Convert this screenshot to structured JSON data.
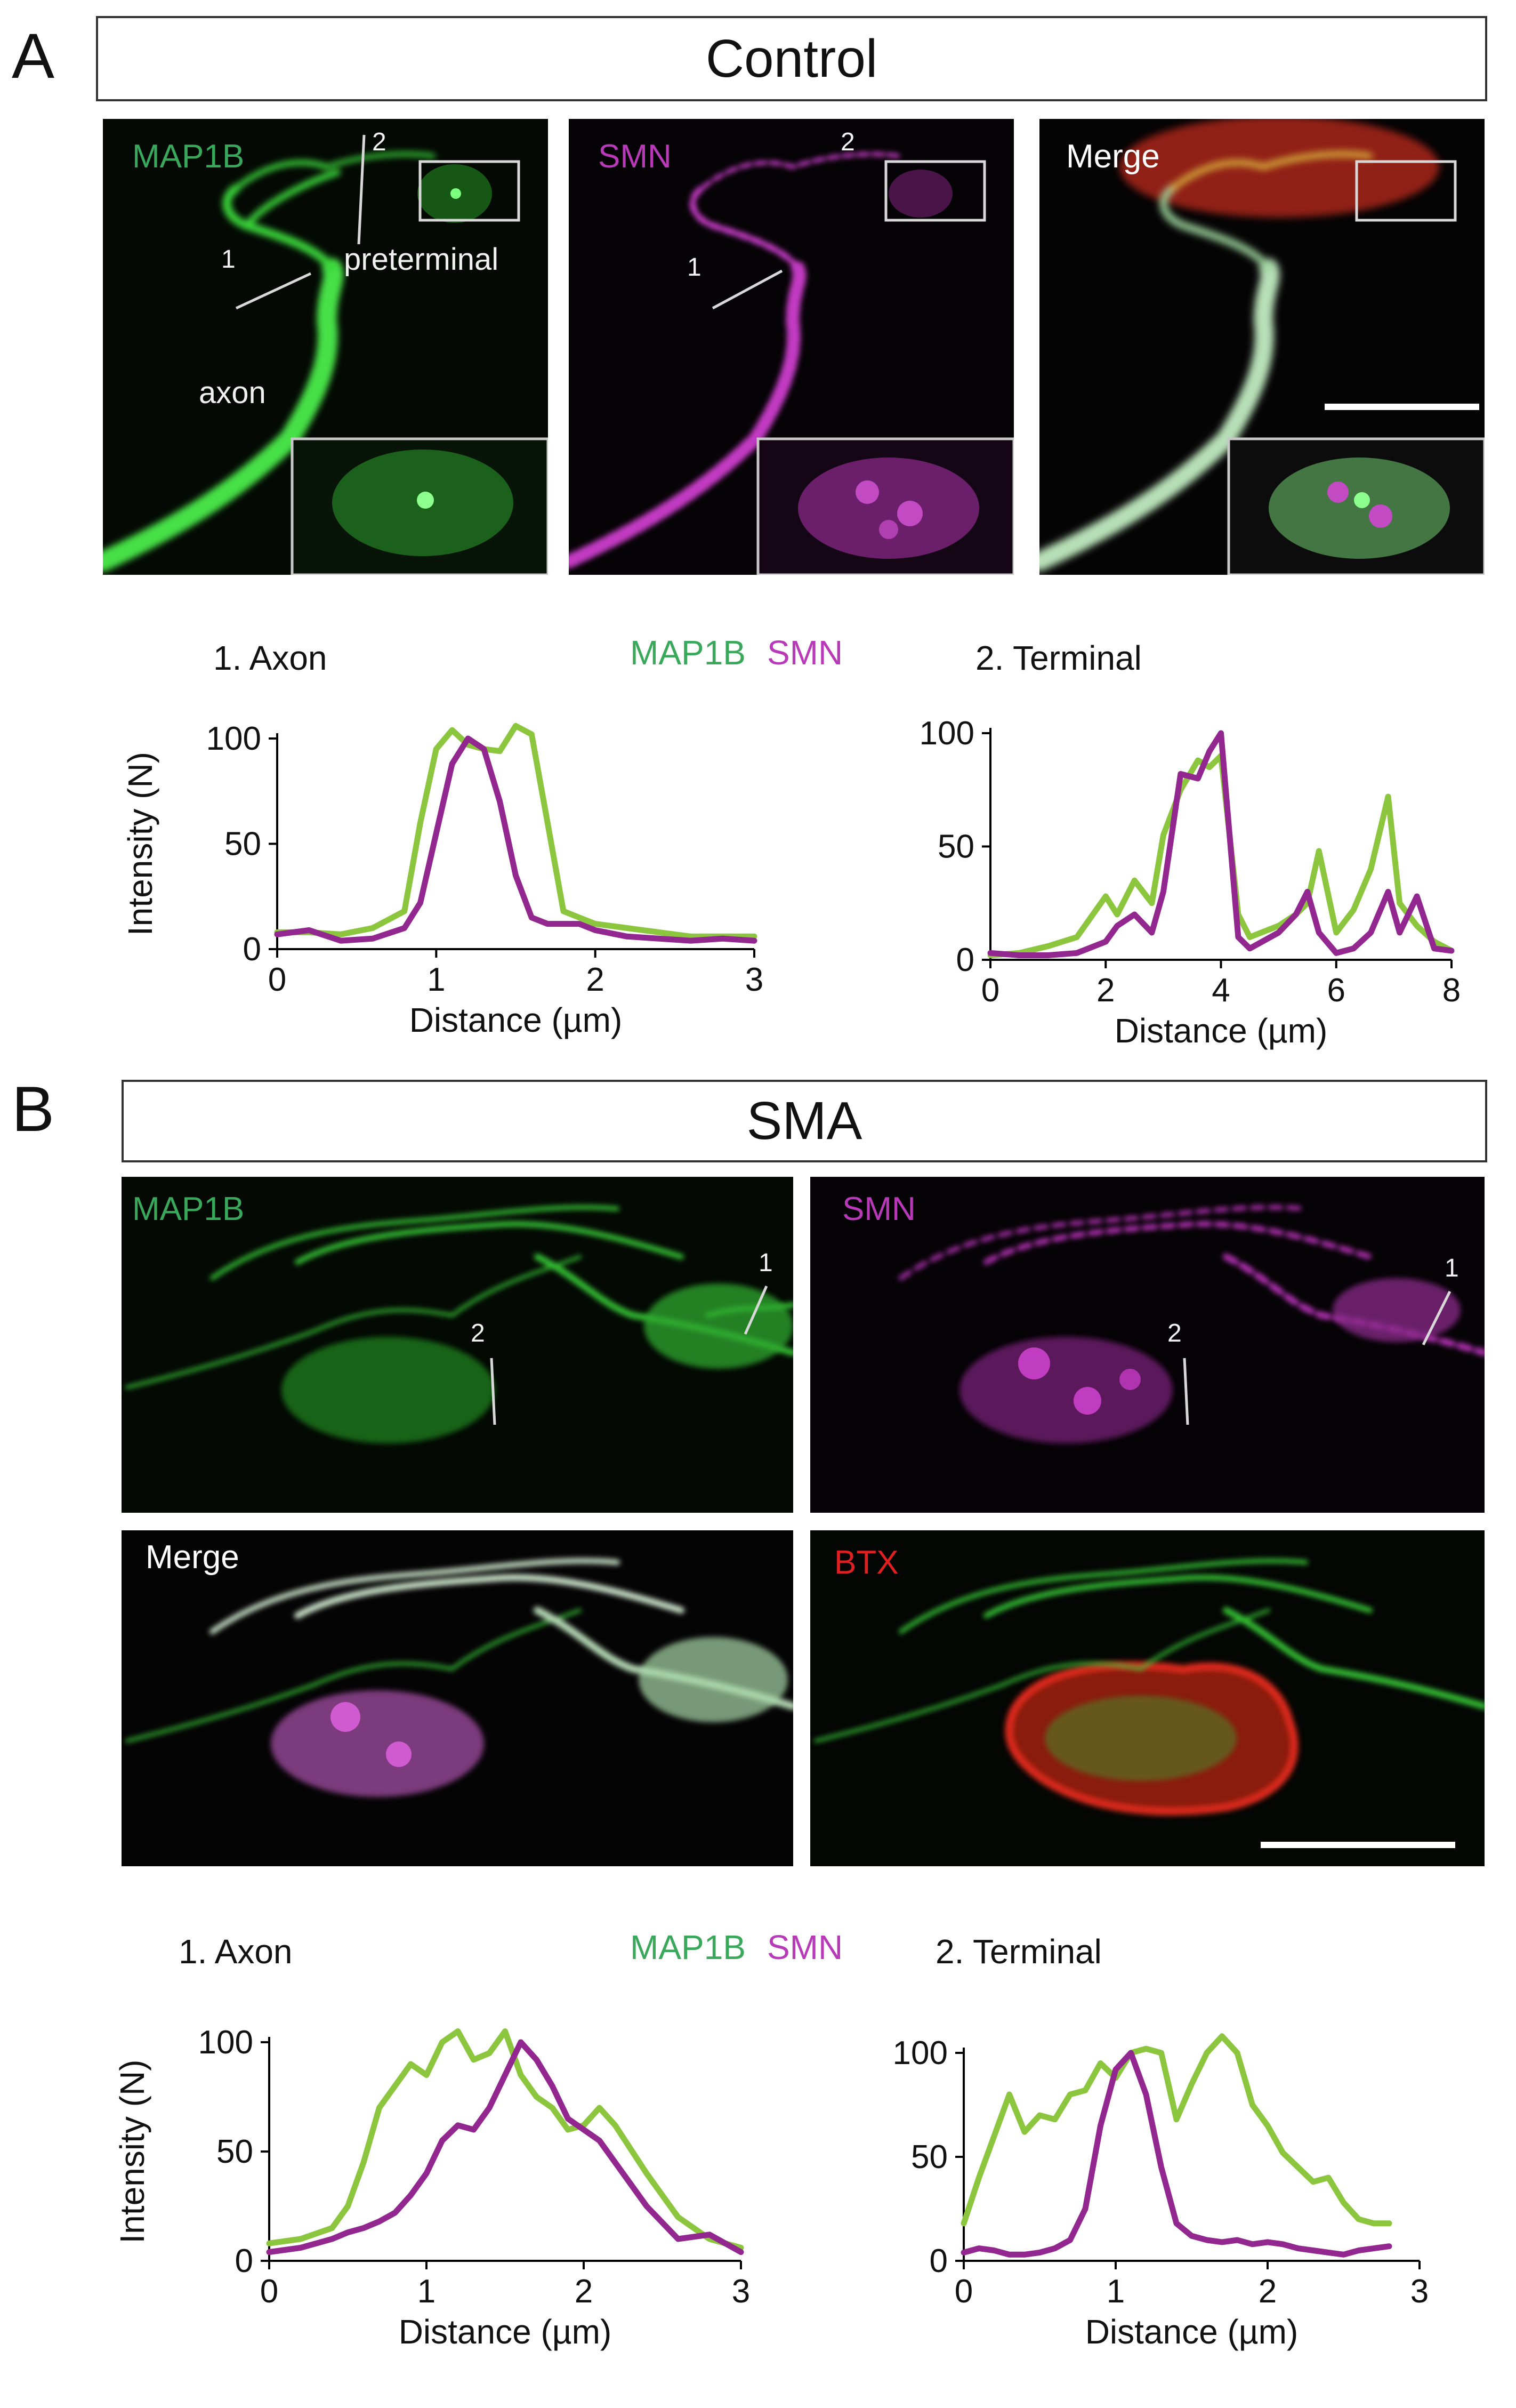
{
  "panels": {
    "a": {
      "letter": "A",
      "title": "Control",
      "image_labels": {
        "map1b": "MAP1B",
        "smn": "SMN",
        "merge": "Merge",
        "axon": "axon",
        "preterminal": "preterminal",
        "line1": "1",
        "line2": "2"
      }
    },
    "b": {
      "letter": "B",
      "title": "SMA",
      "image_labels": {
        "map1b": "MAP1B",
        "smn": "SMN",
        "merge": "Merge",
        "btx": "BTX",
        "line1": "1",
        "line2": "2"
      }
    }
  },
  "legend": {
    "map1b": "MAP1B",
    "smn": "SMN"
  },
  "colors": {
    "map1b": "#8cc63f",
    "smn": "#92278f",
    "map1b_text": "#3aa85a",
    "smn_text": "#b83ab8",
    "btx_text": "#e02020",
    "background_image": "#050805"
  },
  "chart_data": [
    {
      "type": "line",
      "title": "1. Axon",
      "xlabel": "Distance (µm)",
      "ylabel": "Intensity (N)",
      "xlim": [
        0,
        3
      ],
      "ylim": [
        0,
        100
      ],
      "xticks": [
        "0",
        "1",
        "2",
        "3"
      ],
      "yticks": [
        "0",
        "50",
        "100"
      ],
      "series": [
        {
          "name": "MAP1B",
          "x": [
            0,
            0.2,
            0.4,
            0.6,
            0.8,
            0.9,
            1.0,
            1.1,
            1.2,
            1.3,
            1.4,
            1.5,
            1.6,
            1.7,
            1.8,
            1.9,
            2.0,
            2.2,
            2.4,
            2.6,
            2.8,
            3.0
          ],
          "y": [
            8,
            8,
            7,
            10,
            18,
            60,
            95,
            104,
            97,
            95,
            94,
            106,
            102,
            60,
            18,
            15,
            12,
            10,
            8,
            6,
            6,
            6
          ]
        },
        {
          "name": "SMN",
          "x": [
            0,
            0.2,
            0.4,
            0.6,
            0.8,
            0.9,
            1.0,
            1.1,
            1.2,
            1.3,
            1.4,
            1.5,
            1.6,
            1.7,
            1.8,
            1.9,
            2.0,
            2.2,
            2.4,
            2.6,
            2.8,
            3.0
          ],
          "y": [
            7,
            9,
            4,
            5,
            10,
            22,
            55,
            88,
            100,
            95,
            70,
            35,
            15,
            12,
            12,
            12,
            9,
            6,
            5,
            4,
            5,
            4
          ]
        }
      ]
    },
    {
      "type": "line",
      "title": "2. Terminal",
      "xlabel": "Distance (µm)",
      "ylabel": "",
      "xlim": [
        0,
        8
      ],
      "ylim": [
        0,
        100
      ],
      "xticks": [
        "0",
        "2",
        "4",
        "6",
        "8"
      ],
      "yticks": [
        "0",
        "50",
        "100"
      ],
      "series": [
        {
          "name": "MAP1B",
          "x": [
            0,
            0.5,
            1.0,
            1.5,
            2.0,
            2.2,
            2.5,
            2.8,
            3.0,
            3.3,
            3.6,
            3.8,
            4.0,
            4.3,
            4.5,
            5.0,
            5.3,
            5.5,
            5.7,
            6.0,
            6.3,
            6.6,
            6.9,
            7.1,
            7.4,
            7.7,
            8.0
          ],
          "y": [
            2,
            3,
            6,
            10,
            28,
            20,
            35,
            25,
            55,
            75,
            88,
            85,
            90,
            20,
            10,
            15,
            20,
            25,
            48,
            12,
            22,
            40,
            72,
            25,
            15,
            8,
            4
          ]
        },
        {
          "name": "SMN",
          "x": [
            0,
            0.5,
            1.0,
            1.5,
            2.0,
            2.2,
            2.5,
            2.8,
            3.0,
            3.3,
            3.6,
            3.8,
            4.0,
            4.3,
            4.5,
            5.0,
            5.3,
            5.5,
            5.7,
            6.0,
            6.3,
            6.6,
            6.9,
            7.1,
            7.4,
            7.7,
            8.0
          ],
          "y": [
            3,
            2,
            2,
            3,
            8,
            15,
            20,
            12,
            30,
            82,
            80,
            92,
            100,
            10,
            5,
            12,
            20,
            30,
            12,
            3,
            5,
            12,
            30,
            12,
            28,
            5,
            4
          ]
        }
      ]
    },
    {
      "type": "line",
      "title": "1. Axon",
      "xlabel": "Distance (µm)",
      "ylabel": "Intensity (N)",
      "xlim": [
        0,
        3
      ],
      "ylim": [
        0,
        100
      ],
      "xticks": [
        "0",
        "1",
        "2",
        "3"
      ],
      "yticks": [
        "0",
        "50",
        "100"
      ],
      "series": [
        {
          "name": "MAP1B",
          "x": [
            0,
            0.2,
            0.4,
            0.5,
            0.6,
            0.7,
            0.8,
            0.9,
            1.0,
            1.1,
            1.2,
            1.3,
            1.4,
            1.5,
            1.6,
            1.7,
            1.8,
            1.9,
            2.0,
            2.1,
            2.2,
            2.4,
            2.6,
            2.8,
            3.0
          ],
          "y": [
            8,
            10,
            15,
            25,
            45,
            70,
            80,
            90,
            85,
            100,
            105,
            92,
            95,
            105,
            85,
            75,
            70,
            60,
            62,
            70,
            62,
            40,
            20,
            10,
            6
          ]
        },
        {
          "name": "SMN",
          "x": [
            0,
            0.2,
            0.4,
            0.5,
            0.6,
            0.7,
            0.8,
            0.9,
            1.0,
            1.1,
            1.2,
            1.3,
            1.4,
            1.5,
            1.6,
            1.7,
            1.8,
            1.9,
            2.0,
            2.1,
            2.2,
            2.4,
            2.6,
            2.8,
            3.0
          ],
          "y": [
            4,
            6,
            10,
            13,
            15,
            18,
            22,
            30,
            40,
            55,
            62,
            60,
            70,
            85,
            100,
            92,
            80,
            65,
            60,
            55,
            45,
            25,
            10,
            12,
            4
          ]
        }
      ]
    },
    {
      "type": "line",
      "title": "2. Terminal",
      "xlabel": "Distance (µm)",
      "ylabel": "",
      "xlim": [
        0,
        3
      ],
      "ylim": [
        0,
        100
      ],
      "xticks": [
        "0",
        "1",
        "2",
        "3"
      ],
      "yticks": [
        "0",
        "50",
        "100"
      ],
      "series": [
        {
          "name": "MAP1B",
          "x": [
            0,
            0.1,
            0.2,
            0.3,
            0.4,
            0.5,
            0.6,
            0.7,
            0.8,
            0.9,
            1.0,
            1.1,
            1.2,
            1.3,
            1.4,
            1.5,
            1.6,
            1.7,
            1.8,
            1.9,
            2.0,
            2.1,
            2.2,
            2.3,
            2.4,
            2.5,
            2.6,
            2.7,
            2.8
          ],
          "y": [
            18,
            40,
            60,
            80,
            62,
            70,
            68,
            80,
            82,
            95,
            88,
            100,
            102,
            100,
            68,
            85,
            100,
            108,
            100,
            75,
            65,
            52,
            45,
            38,
            40,
            28,
            20,
            18,
            18
          ]
        },
        {
          "name": "SMN",
          "x": [
            0,
            0.1,
            0.2,
            0.3,
            0.4,
            0.5,
            0.6,
            0.7,
            0.8,
            0.9,
            1.0,
            1.1,
            1.2,
            1.3,
            1.4,
            1.5,
            1.6,
            1.7,
            1.8,
            1.9,
            2.0,
            2.1,
            2.2,
            2.3,
            2.4,
            2.5,
            2.6,
            2.7,
            2.8
          ],
          "y": [
            4,
            6,
            5,
            3,
            3,
            4,
            6,
            10,
            25,
            65,
            92,
            100,
            80,
            45,
            18,
            12,
            10,
            9,
            10,
            8,
            9,
            8,
            6,
            5,
            4,
            3,
            5,
            6,
            7
          ]
        }
      ]
    }
  ]
}
